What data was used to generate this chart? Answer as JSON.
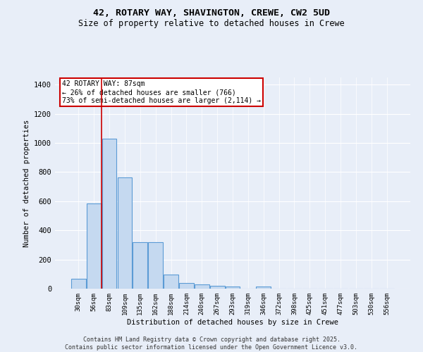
{
  "title1": "42, ROTARY WAY, SHAVINGTON, CREWE, CW2 5UD",
  "title2": "Size of property relative to detached houses in Crewe",
  "xlabel": "Distribution of detached houses by size in Crewe",
  "ylabel": "Number of detached properties",
  "categories": [
    "30sqm",
    "56sqm",
    "83sqm",
    "109sqm",
    "135sqm",
    "162sqm",
    "188sqm",
    "214sqm",
    "240sqm",
    "267sqm",
    "293sqm",
    "319sqm",
    "346sqm",
    "372sqm",
    "398sqm",
    "425sqm",
    "451sqm",
    "477sqm",
    "503sqm",
    "530sqm",
    "556sqm"
  ],
  "values": [
    68,
    585,
    1030,
    765,
    320,
    320,
    95,
    38,
    28,
    18,
    14,
    0,
    14,
    0,
    0,
    0,
    0,
    0,
    0,
    0,
    0
  ],
  "bar_color": "#c5d9f0",
  "bar_edge_color": "#5b9bd5",
  "vline_index": 2,
  "vline_color": "#cc0000",
  "annotation_text": "42 ROTARY WAY: 87sqm\n← 26% of detached houses are smaller (766)\n73% of semi-detached houses are larger (2,114) →",
  "annotation_box_color": "#ffffff",
  "annotation_box_edge": "#cc0000",
  "ylim": [
    0,
    1450
  ],
  "yticks": [
    0,
    200,
    400,
    600,
    800,
    1000,
    1200,
    1400
  ],
  "bg_color": "#e8eef8",
  "grid_color": "#ffffff",
  "footer": "Contains HM Land Registry data © Crown copyright and database right 2025.\nContains public sector information licensed under the Open Government Licence v3.0."
}
